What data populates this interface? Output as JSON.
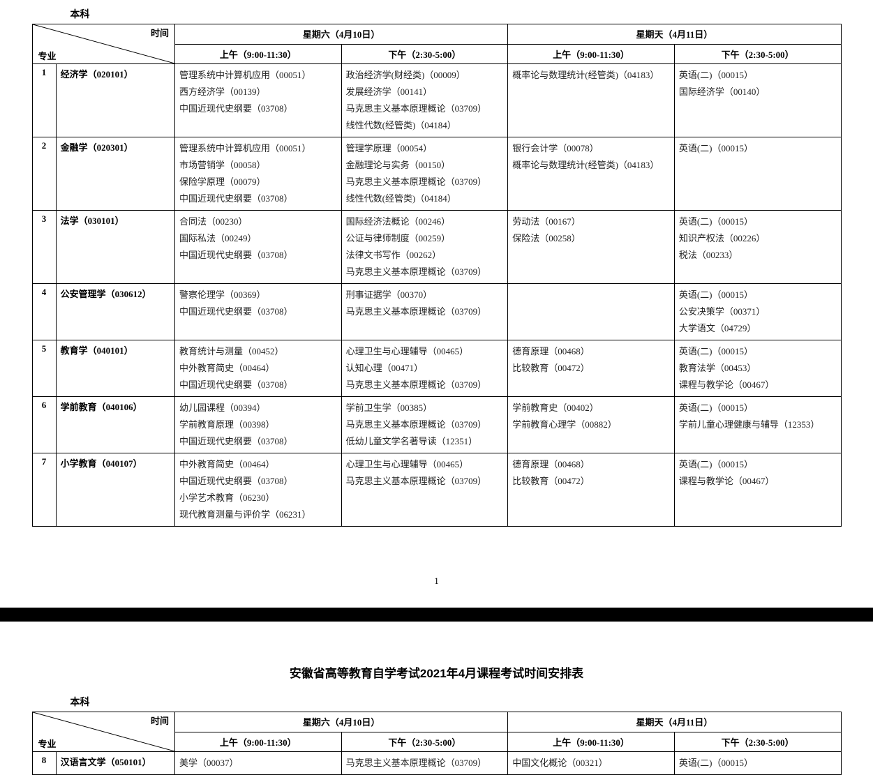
{
  "category": "本科",
  "diag_header": {
    "time": "时间",
    "major": "专业"
  },
  "day1": {
    "label": "星期六（4月10日）",
    "am": "上午（9:00-11:30）",
    "pm": "下午（2:30-5:00）"
  },
  "day2": {
    "label": "星期天（4月11日）",
    "am": "上午（9:00-11:30）",
    "pm": "下午（2:30-5:00）"
  },
  "rows": [
    {
      "idx": "1",
      "major": "经济学（020101）",
      "sat_am": [
        "管理系统中计算机应用（00051）",
        "西方经济学（00139）",
        "中国近现代史纲要（03708）"
      ],
      "sat_pm": [
        "政治经济学(财经类)（00009）",
        "发展经济学（00141）",
        "马克思主义基本原理概论（03709）",
        "线性代数(经管类)（04184）"
      ],
      "sun_am": [
        "概率论与数理统计(经管类)（04183）"
      ],
      "sun_pm": [
        "英语(二)（00015）",
        "国际经济学（00140）"
      ]
    },
    {
      "idx": "2",
      "major": "金融学（020301）",
      "sat_am": [
        "管理系统中计算机应用（00051）",
        "市场营销学（00058）",
        "保险学原理（00079）",
        "中国近现代史纲要（03708）"
      ],
      "sat_pm": [
        "管理学原理（00054）",
        "金融理论与实务（00150）",
        "马克思主义基本原理概论（03709）",
        "线性代数(经管类)（04184）"
      ],
      "sun_am": [
        "银行会计学（00078）",
        "概率论与数理统计(经管类)（04183）"
      ],
      "sun_pm": [
        "英语(二)（00015）"
      ]
    },
    {
      "idx": "3",
      "major": "法学（030101）",
      "sat_am": [
        "合同法（00230）",
        "国际私法（00249）",
        "中国近现代史纲要（03708）"
      ],
      "sat_pm": [
        "国际经济法概论（00246）",
        "公证与律师制度（00259）",
        "法律文书写作（00262）",
        "马克思主义基本原理概论（03709）"
      ],
      "sun_am": [
        "劳动法（00167）",
        "保险法（00258）"
      ],
      "sun_pm": [
        "英语(二)（00015）",
        "知识产权法（00226）",
        "税法（00233）"
      ]
    },
    {
      "idx": "4",
      "major": "公安管理学（030612）",
      "sat_am": [
        "警察伦理学（00369）",
        "中国近现代史纲要（03708）"
      ],
      "sat_pm": [
        "刑事证据学（00370）",
        "马克思主义基本原理概论（03709）"
      ],
      "sun_am": [],
      "sun_pm": [
        "英语(二)（00015）",
        "公安决策学（00371）",
        "大学语文（04729）"
      ]
    },
    {
      "idx": "5",
      "major": "教育学（040101）",
      "sat_am": [
        "教育统计与测量（00452）",
        "中外教育简史（00464）",
        "中国近现代史纲要（03708）"
      ],
      "sat_pm": [
        "心理卫生与心理辅导（00465）",
        "认知心理（00471）",
        "马克思主义基本原理概论（03709）"
      ],
      "sun_am": [
        "德育原理（00468）",
        "比较教育（00472）"
      ],
      "sun_pm": [
        "英语(二)（00015）",
        "教育法学（00453）",
        "课程与教学论（00467）"
      ]
    },
    {
      "idx": "6",
      "major": "学前教育（040106）",
      "sat_am": [
        "幼儿园课程（00394）",
        "学前教育原理（00398）",
        "中国近现代史纲要（03708）"
      ],
      "sat_pm": [
        "学前卫生学（00385）",
        "马克思主义基本原理概论（03709）",
        "低幼儿童文学名著导读（12351）"
      ],
      "sun_am": [
        "学前教育史（00402）",
        "学前教育心理学（00882）"
      ],
      "sun_pm": [
        "英语(二)（00015）",
        "学前儿童心理健康与辅导（12353）"
      ]
    },
    {
      "idx": "7",
      "major": "小学教育（040107）",
      "sat_am": [
        "中外教育简史（00464）",
        "中国近现代史纲要（03708）",
        "小学艺术教育（06230）",
        "现代教育测量与评价学（06231）"
      ],
      "sat_pm": [
        "心理卫生与心理辅导（00465）",
        "马克思主义基本原理概论（03709）"
      ],
      "sun_am": [
        "德育原理（00468）",
        "比较教育（00472）"
      ],
      "sun_pm": [
        "英语(二)（00015）",
        "课程与教学论（00467）"
      ]
    }
  ],
  "page_number": "1",
  "page2_title": "安徽省高等教育自学考试2021年4月课程考试时间安排表",
  "page2_rows": [
    {
      "idx": "8",
      "major": "汉语言文学（050101）",
      "sat_am": [
        "美学（00037）"
      ],
      "sat_pm": [
        "马克思主义基本原理概论（03709）"
      ],
      "sun_am": [
        "中国文化概论（00321）"
      ],
      "sun_pm": [
        "英语(二)（00015）"
      ]
    }
  ]
}
